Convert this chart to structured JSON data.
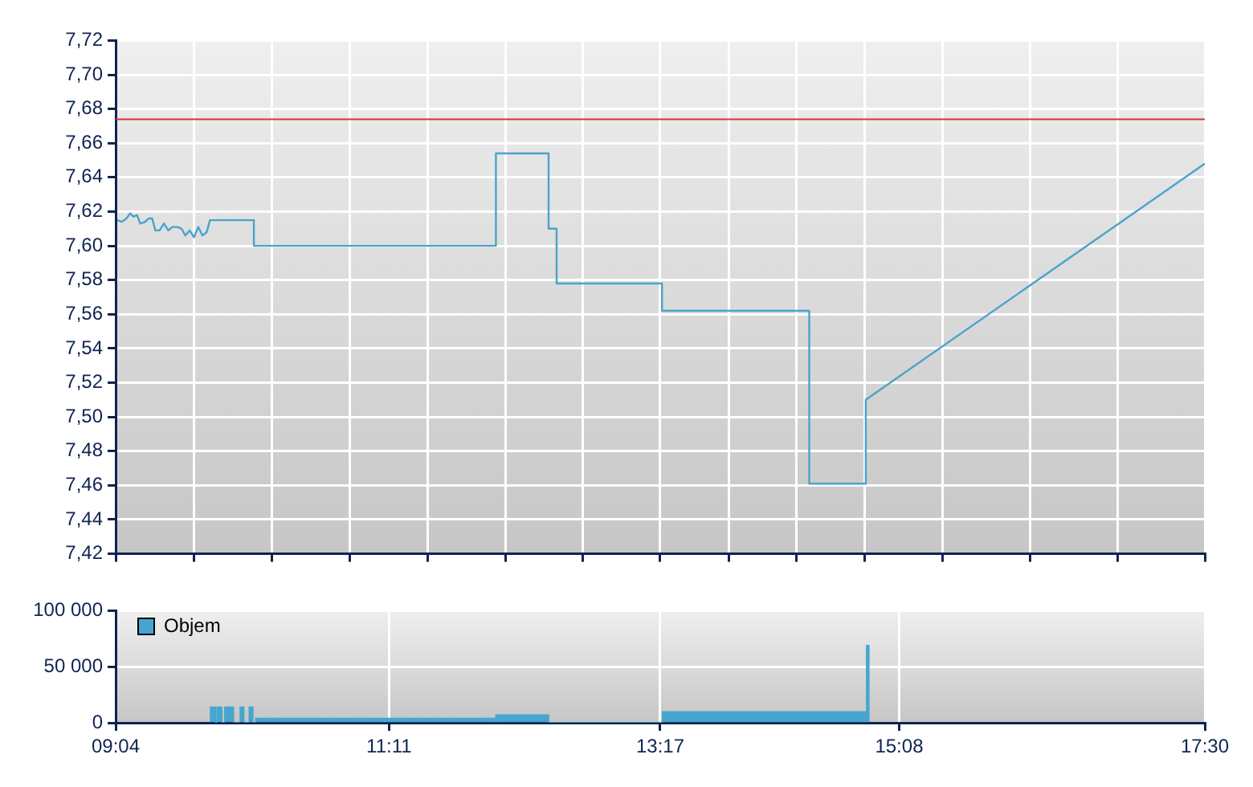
{
  "chart_data": [
    {
      "type": "line",
      "x": [
        9.079,
        9.116,
        9.15,
        9.179,
        9.204,
        9.232,
        9.257,
        9.295,
        9.324,
        9.349,
        9.374,
        9.407,
        9.44,
        9.474,
        9.506,
        9.544,
        9.577,
        9.606,
        9.639,
        9.673,
        9.706,
        9.739,
        9.772,
        9.797,
        10.137,
        10.137,
        12.011,
        12.011,
        12.419,
        12.419,
        12.481,
        12.481,
        13.297,
        13.297,
        14.437,
        14.437,
        14.875,
        14.875,
        17.5
      ],
      "series": [
        {
          "color": "#4aa3cc",
          "values": [
            7.615,
            7.614,
            7.616,
            7.619,
            7.617,
            7.618,
            7.613,
            7.614,
            7.616,
            7.616,
            7.609,
            7.609,
            7.613,
            7.609,
            7.611,
            7.611,
            7.61,
            7.606,
            7.609,
            7.605,
            7.611,
            7.606,
            7.608,
            7.615,
            7.615,
            7.6,
            7.6,
            7.654,
            7.654,
            7.61,
            7.61,
            7.578,
            7.578,
            7.562,
            7.562,
            7.461,
            7.461,
            7.51,
            7.648
          ]
        }
      ],
      "marker": "none",
      "xlim": [
        9.0667,
        17.5
      ],
      "xticks": [
        {
          "value": 9.0667,
          "label": null
        },
        {
          "value": 9.672,
          "label": null
        },
        {
          "value": 10.276,
          "label": null
        },
        {
          "value": 10.881,
          "label": null
        },
        {
          "value": 11.483,
          "label": null
        },
        {
          "value": 12.084,
          "label": null
        },
        {
          "value": 12.683,
          "label": null
        },
        {
          "value": 13.283,
          "label": null
        },
        {
          "value": 13.812,
          "label": null
        },
        {
          "value": 14.34,
          "label": null
        },
        {
          "value": 14.869,
          "label": null
        },
        {
          "value": 15.472,
          "label": null
        },
        {
          "value": 16.148,
          "label": null
        },
        {
          "value": 16.824,
          "label": null
        },
        {
          "value": 17.5,
          "label": null
        }
      ],
      "ylim": [
        7.42,
        7.72
      ],
      "yticks": [
        {
          "value": 7.42,
          "label": "7,42"
        },
        {
          "value": 7.44,
          "label": "7,44"
        },
        {
          "value": 7.46,
          "label": "7,46"
        },
        {
          "value": 7.48,
          "label": "7,48"
        },
        {
          "value": 7.5,
          "label": "7,50"
        },
        {
          "value": 7.52,
          "label": "7,52"
        },
        {
          "value": 7.54,
          "label": "7,54"
        },
        {
          "value": 7.56,
          "label": "7,56"
        },
        {
          "value": 7.58,
          "label": "7,58"
        },
        {
          "value": 7.6,
          "label": "7,60"
        },
        {
          "value": 7.62,
          "label": "7,62"
        },
        {
          "value": 7.64,
          "label": "7,64"
        },
        {
          "value": 7.66,
          "label": "7,66"
        },
        {
          "value": 7.68,
          "label": "7,68"
        },
        {
          "value": 7.7,
          "label": "7,70"
        },
        {
          "value": 7.72,
          "label": "7,72"
        }
      ],
      "ref_lines": [
        {
          "axis": "y",
          "value": 7.674,
          "color": "#e03030"
        }
      ],
      "grid": true,
      "tick_labels": "y"
    },
    {
      "type": "histogram",
      "bins": [
        9.8,
        9.84,
        9.85,
        9.89,
        9.91,
        9.98,
        10.03,
        10.06,
        10.1,
        10.13,
        10.15,
        12.01,
        12.42,
        13.3,
        14.88,
        14.9
      ],
      "series": [
        {
          "name": "Objem",
          "color": "#46a6cf",
          "values": [
            14000,
            0,
            14000,
            0,
            14000,
            0,
            14000,
            0,
            14000,
            0,
            4000,
            7000,
            0,
            10000,
            69000
          ]
        }
      ],
      "xlim": [
        9.0667,
        17.5
      ],
      "xticks": [
        {
          "value": 9.0667,
          "label": "09:04"
        },
        {
          "value": 11.1833,
          "label": "11:11"
        },
        {
          "value": 13.2833,
          "label": "13:17"
        },
        {
          "value": 15.1333,
          "label": "15:08"
        },
        {
          "value": 17.5,
          "label": "17:30"
        }
      ],
      "ylim": [
        0,
        100000
      ],
      "yticks": [
        0,
        {
          "value": 50000,
          "label": "50 000"
        },
        {
          "value": 100000,
          "label": "100 000"
        }
      ],
      "grid": true,
      "legend": "left"
    }
  ]
}
